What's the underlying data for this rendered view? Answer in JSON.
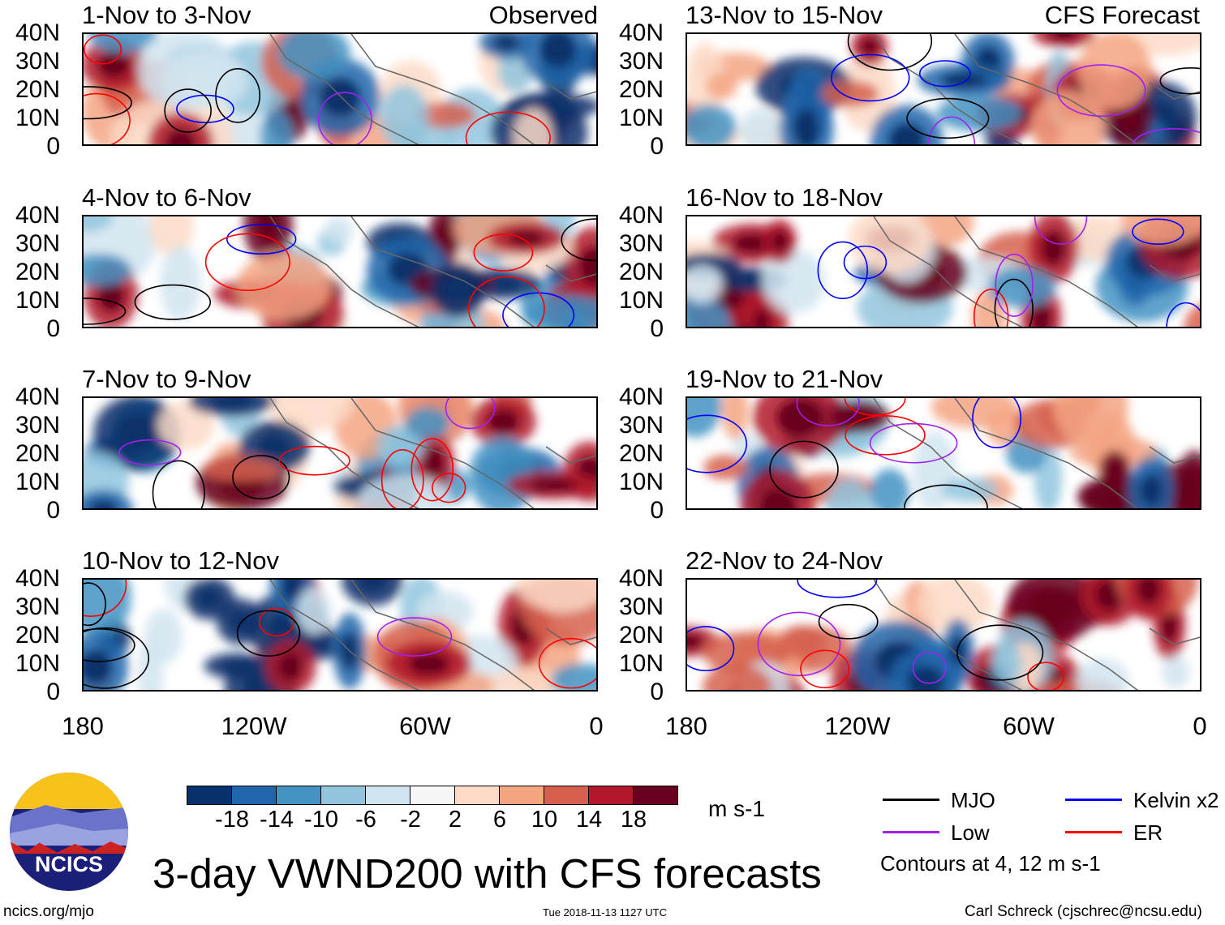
{
  "title": "3-day VWND200 with CFS forecasts",
  "logo_text": "NCICS",
  "footer": {
    "left": "ncics.org/mjo",
    "center": "Tue 2018-11-13 1127 UTC",
    "right": "Carl Schreck (cjschrec@ncsu.edu)"
  },
  "panel_labels": {
    "observed": "Observed",
    "forecast": "CFS Forecast"
  },
  "chart_data": {
    "type": "heatmap",
    "variable": "200-hPa meridional wind anomaly (3-day mean)",
    "y_ticks": [
      "40N",
      "30N",
      "20N",
      "10N",
      "0"
    ],
    "x_ticks": [
      "180",
      "120W",
      "60W",
      "0"
    ],
    "lat_range": [
      0,
      40
    ],
    "lon_range": [
      "180",
      "0"
    ],
    "panels": [
      {
        "title": "1-Nov to 3-Nov",
        "group": "observed"
      },
      {
        "title": "4-Nov to 6-Nov",
        "group": "observed"
      },
      {
        "title": "7-Nov to 9-Nov",
        "group": "observed"
      },
      {
        "title": "10-Nov to 12-Nov",
        "group": "observed"
      },
      {
        "title": "13-Nov to 15-Nov",
        "group": "forecast"
      },
      {
        "title": "16-Nov to 18-Nov",
        "group": "forecast"
      },
      {
        "title": "19-Nov to 21-Nov",
        "group": "forecast"
      },
      {
        "title": "22-Nov to 24-Nov",
        "group": "forecast"
      }
    ],
    "colorbar": {
      "labels": [
        "-18",
        "-14",
        "-10",
        "-6",
        "-2",
        "2",
        "6",
        "10",
        "14",
        "18"
      ],
      "colors": [
        "#08306b",
        "#2166ac",
        "#4393c3",
        "#92c5de",
        "#d1e5f0",
        "#f7f7f7",
        "#fddbc7",
        "#f4a582",
        "#d6604d",
        "#b2182b",
        "#67001f"
      ],
      "units": "m s-1"
    },
    "legend": [
      {
        "label": "MJO",
        "color": "#000000"
      },
      {
        "label": "Kelvin x2",
        "color": "#0000ff"
      },
      {
        "label": "Low",
        "color": "#a020f0"
      },
      {
        "label": "ER",
        "color": "#ff0000"
      }
    ],
    "contour_note": "Contours at 4, 12 m s-1"
  }
}
